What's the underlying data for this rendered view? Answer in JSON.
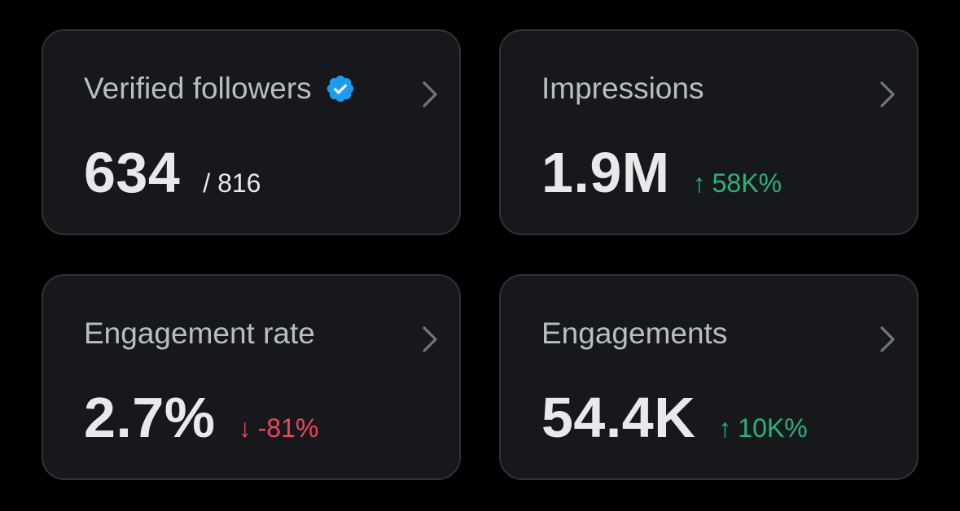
{
  "cards": {
    "verified_followers": {
      "label": "Verified followers",
      "value": "634",
      "total": "/ 816",
      "badge_icon": "verified-badge-icon",
      "badge_color": "#1d9bf0"
    },
    "impressions": {
      "label": "Impressions",
      "value": "1.9M",
      "delta_arrow": "↑",
      "delta": "58K%",
      "delta_direction": "up"
    },
    "engagement_rate": {
      "label": "Engagement rate",
      "value": "2.7%",
      "delta_arrow": "↓",
      "delta": "-81%",
      "delta_direction": "down"
    },
    "engagements": {
      "label": "Engagements",
      "value": "54.4K",
      "delta_arrow": "↑",
      "delta": "10K%",
      "delta_direction": "up"
    }
  },
  "colors": {
    "background": "#000000",
    "card_background": "#17181c",
    "card_border": "#2f3338",
    "label": "#b9bec3",
    "value": "#e7e9ea",
    "up": "#27b47b",
    "down": "#f0465a",
    "chevron": "#71767b"
  },
  "icons": {
    "chevron": "chevron-right-icon"
  }
}
